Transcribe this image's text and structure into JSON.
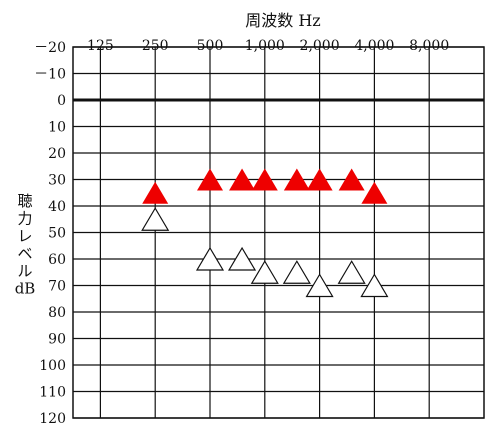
{
  "chart_data": {
    "type": "scatter",
    "title": "周波数 Hz",
    "ylabel_lines": [
      "聴",
      "力",
      "レ",
      "ベ",
      "ル",
      "dB"
    ],
    "x_scale": "log2",
    "x_ticks": [
      125,
      250,
      500,
      1000,
      2000,
      4000,
      8000
    ],
    "x_tick_labels": [
      "125",
      "250",
      "500",
      "1,000",
      "2,000",
      "4,000",
      "8,000"
    ],
    "y_ticks": [
      -20,
      -10,
      0,
      10,
      20,
      30,
      40,
      50,
      60,
      70,
      80,
      90,
      100,
      110,
      120
    ],
    "y_tick_labels": [
      "－20",
      "－10",
      "0",
      "10",
      "20",
      "30",
      "40",
      "50",
      "60",
      "70",
      "80",
      "90",
      "100",
      "110",
      "120"
    ],
    "y_direction": "inverted",
    "ylim": [
      -20,
      120
    ],
    "grid": true,
    "series": [
      {
        "marker": "filled-triangle",
        "color": "#ee0000",
        "points": [
          {
            "x": 250,
            "y": 35
          },
          {
            "x": 500,
            "y": 30
          },
          {
            "x": 750,
            "y": 30
          },
          {
            "x": 1000,
            "y": 30
          },
          {
            "x": 1500,
            "y": 30
          },
          {
            "x": 2000,
            "y": 30
          },
          {
            "x": 3000,
            "y": 30
          },
          {
            "x": 4000,
            "y": 35
          }
        ]
      },
      {
        "marker": "open-triangle",
        "color": "#111111",
        "points": [
          {
            "x": 250,
            "y": 45
          },
          {
            "x": 500,
            "y": 60
          },
          {
            "x": 750,
            "y": 60
          },
          {
            "x": 1000,
            "y": 65
          },
          {
            "x": 1500,
            "y": 65
          },
          {
            "x": 2000,
            "y": 70
          },
          {
            "x": 3000,
            "y": 65
          },
          {
            "x": 4000,
            "y": 70
          }
        ]
      }
    ]
  }
}
